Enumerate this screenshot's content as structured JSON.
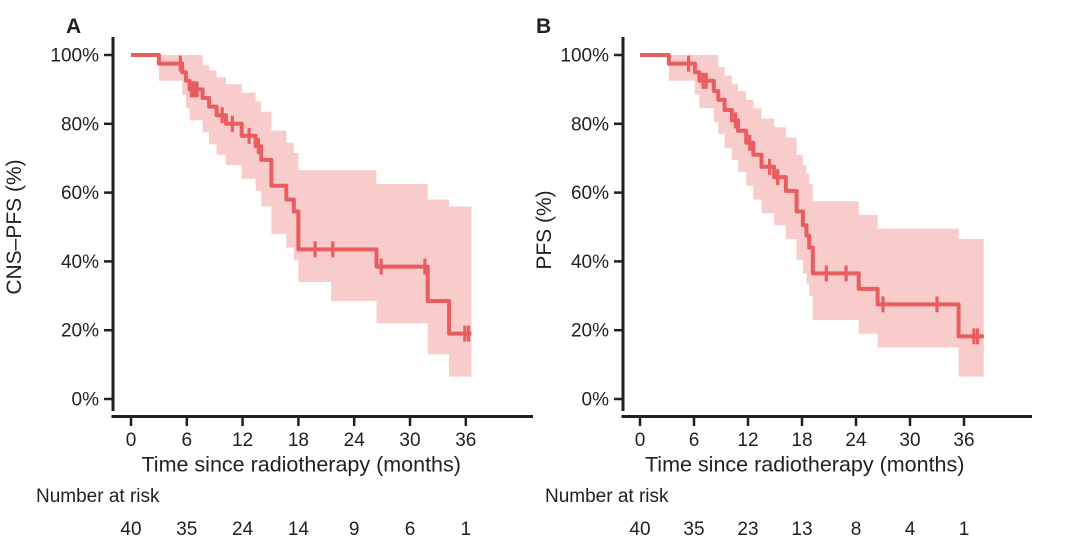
{
  "figure": {
    "background": "#ffffff",
    "axis_color": "#231f20",
    "line_color": "#e85d5f",
    "band_color": "#f9cccc",
    "text_color": "#231f20"
  },
  "chart_data": [
    {
      "type": "line",
      "subtype": "kaplan-meier-step-with-confidence-band",
      "panel_label": "A",
      "xlabel": "Time since radiotherapy (months)",
      "ylabel": "CNS–PFS (%)",
      "xlim": [
        0,
        43.5
      ],
      "ylim": [
        0,
        100
      ],
      "grid": false,
      "legend": false,
      "x_ticks": [
        0,
        6,
        12,
        18,
        24,
        30,
        36
      ],
      "y_ticks": [
        0,
        20,
        40,
        60,
        80,
        100
      ],
      "y_tick_labels": [
        "0%",
        "20%",
        "40%",
        "60%",
        "80%",
        "100%"
      ],
      "number_at_risk": {
        "label": "Number at risk",
        "times": [
          0,
          6,
          12,
          18,
          24,
          30,
          36
        ],
        "counts": [
          40,
          35,
          24,
          14,
          9,
          6,
          1
        ]
      },
      "steps": [
        {
          "t": 0.0,
          "s": 100.0,
          "lo": 100.0,
          "hi": 100.0
        },
        {
          "t": 3.0,
          "s": 97.5,
          "lo": 92.5,
          "hi": 100.0
        },
        {
          "t": 5.5,
          "s": 95.0,
          "lo": 88.5,
          "hi": 100.0
        },
        {
          "t": 5.9,
          "s": 92.5,
          "lo": 84.5,
          "hi": 100.0
        },
        {
          "t": 6.3,
          "s": 90.0,
          "lo": 81.0,
          "hi": 100.0
        },
        {
          "t": 7.7,
          "s": 87.5,
          "lo": 77.5,
          "hi": 97.0
        },
        {
          "t": 8.4,
          "s": 85.0,
          "lo": 74.0,
          "hi": 95.5
        },
        {
          "t": 9.2,
          "s": 82.5,
          "lo": 71.0,
          "hi": 93.5
        },
        {
          "t": 10.2,
          "s": 80.0,
          "lo": 68.0,
          "hi": 91.5
        },
        {
          "t": 11.9,
          "s": 76.5,
          "lo": 64.0,
          "hi": 89.0
        },
        {
          "t": 13.4,
          "s": 73.5,
          "lo": 60.5,
          "hi": 86.5
        },
        {
          "t": 14.0,
          "s": 69.5,
          "lo": 56.0,
          "hi": 83.5
        },
        {
          "t": 15.1,
          "s": 62.0,
          "lo": 48.0,
          "hi": 78.0
        },
        {
          "t": 16.7,
          "s": 58.0,
          "lo": 44.0,
          "hi": 74.5
        },
        {
          "t": 17.5,
          "s": 54.5,
          "lo": 40.5,
          "hi": 71.5
        },
        {
          "t": 18.0,
          "s": 43.5,
          "lo": 34.0,
          "hi": 66.5
        },
        {
          "t": 21.5,
          "s": 43.5,
          "lo": 28.5,
          "hi": 66.5
        },
        {
          "t": 26.4,
          "s": 38.5,
          "lo": 22.0,
          "hi": 62.5
        },
        {
          "t": 31.9,
          "s": 28.5,
          "lo": 13.0,
          "hi": 58.0
        },
        {
          "t": 34.2,
          "s": 19.0,
          "lo": 6.5,
          "hi": 56.0
        }
      ],
      "censors": [
        {
          "t": 5.3,
          "s": 97.5
        },
        {
          "t": 6.5,
          "s": 90.0
        },
        {
          "t": 6.8,
          "s": 90.0
        },
        {
          "t": 7.1,
          "s": 90.0
        },
        {
          "t": 9.8,
          "s": 82.5
        },
        {
          "t": 10.9,
          "s": 80.0
        },
        {
          "t": 12.7,
          "s": 76.5
        },
        {
          "t": 13.7,
          "s": 73.5
        },
        {
          "t": 19.8,
          "s": 43.5
        },
        {
          "t": 21.7,
          "s": 43.5
        },
        {
          "t": 26.9,
          "s": 38.5
        },
        {
          "t": 31.6,
          "s": 38.5
        },
        {
          "t": 35.9,
          "s": 19.0
        },
        {
          "t": 36.3,
          "s": 19.0
        }
      ],
      "end_t": 36.6
    },
    {
      "type": "line",
      "subtype": "kaplan-meier-step-with-confidence-band",
      "panel_label": "B",
      "xlabel": "Time since radiotherapy (months)",
      "ylabel": "PFS (%)",
      "xlim": [
        0,
        43.5
      ],
      "ylim": [
        0,
        100
      ],
      "grid": false,
      "legend": false,
      "x_ticks": [
        0,
        6,
        12,
        18,
        24,
        30,
        36
      ],
      "y_ticks": [
        0,
        20,
        40,
        60,
        80,
        100
      ],
      "y_tick_labels": [
        "0%",
        "20%",
        "40%",
        "60%",
        "80%",
        "100%"
      ],
      "number_at_risk": {
        "label": "Number at risk",
        "times": [
          0,
          6,
          12,
          18,
          24,
          30,
          36
        ],
        "counts": [
          40,
          35,
          23,
          13,
          8,
          4,
          1
        ]
      },
      "steps": [
        {
          "t": 0.0,
          "s": 100.0,
          "lo": 100.0,
          "hi": 100.0
        },
        {
          "t": 3.2,
          "s": 97.5,
          "lo": 92.5,
          "hi": 100.0
        },
        {
          "t": 6.1,
          "s": 95.0,
          "lo": 88.5,
          "hi": 100.0
        },
        {
          "t": 6.6,
          "s": 92.5,
          "lo": 84.5,
          "hi": 100.0
        },
        {
          "t": 8.2,
          "s": 89.5,
          "lo": 80.5,
          "hi": 100.0
        },
        {
          "t": 8.7,
          "s": 87.0,
          "lo": 77.0,
          "hi": 96.5
        },
        {
          "t": 9.4,
          "s": 84.0,
          "lo": 73.0,
          "hi": 94.0
        },
        {
          "t": 10.2,
          "s": 81.0,
          "lo": 69.5,
          "hi": 91.5
        },
        {
          "t": 10.9,
          "s": 78.0,
          "lo": 66.0,
          "hi": 89.5
        },
        {
          "t": 11.8,
          "s": 74.5,
          "lo": 62.0,
          "hi": 87.0
        },
        {
          "t": 12.6,
          "s": 71.0,
          "lo": 58.0,
          "hi": 84.5
        },
        {
          "t": 13.5,
          "s": 67.5,
          "lo": 54.0,
          "hi": 81.5
        },
        {
          "t": 14.9,
          "s": 64.5,
          "lo": 50.5,
          "hi": 79.0
        },
        {
          "t": 16.2,
          "s": 60.5,
          "lo": 46.5,
          "hi": 76.0
        },
        {
          "t": 17.4,
          "s": 54.5,
          "lo": 40.5,
          "hi": 71.0
        },
        {
          "t": 18.1,
          "s": 50.5,
          "lo": 36.5,
          "hi": 68.0
        },
        {
          "t": 18.5,
          "s": 47.5,
          "lo": 33.5,
          "hi": 65.5
        },
        {
          "t": 18.8,
          "s": 44.0,
          "lo": 30.0,
          "hi": 62.5
        },
        {
          "t": 19.2,
          "s": 36.5,
          "lo": 23.0,
          "hi": 57.5
        },
        {
          "t": 24.3,
          "s": 32.0,
          "lo": 19.0,
          "hi": 53.5
        },
        {
          "t": 26.4,
          "s": 27.5,
          "lo": 15.0,
          "hi": 49.5
        },
        {
          "t": 35.4,
          "s": 18.2,
          "lo": 6.5,
          "hi": 46.5
        }
      ],
      "censors": [
        {
          "t": 5.4,
          "s": 97.5
        },
        {
          "t": 7.0,
          "s": 92.5
        },
        {
          "t": 7.35,
          "s": 92.5
        },
        {
          "t": 10.6,
          "s": 81.0
        },
        {
          "t": 12.2,
          "s": 74.5
        },
        {
          "t": 14.4,
          "s": 67.5
        },
        {
          "t": 15.3,
          "s": 64.5
        },
        {
          "t": 20.7,
          "s": 36.5
        },
        {
          "t": 22.9,
          "s": 36.5
        },
        {
          "t": 27.0,
          "s": 27.5
        },
        {
          "t": 33.0,
          "s": 27.5
        },
        {
          "t": 37.1,
          "s": 18.2
        },
        {
          "t": 37.5,
          "s": 18.2
        }
      ],
      "end_t": 38.2
    }
  ]
}
